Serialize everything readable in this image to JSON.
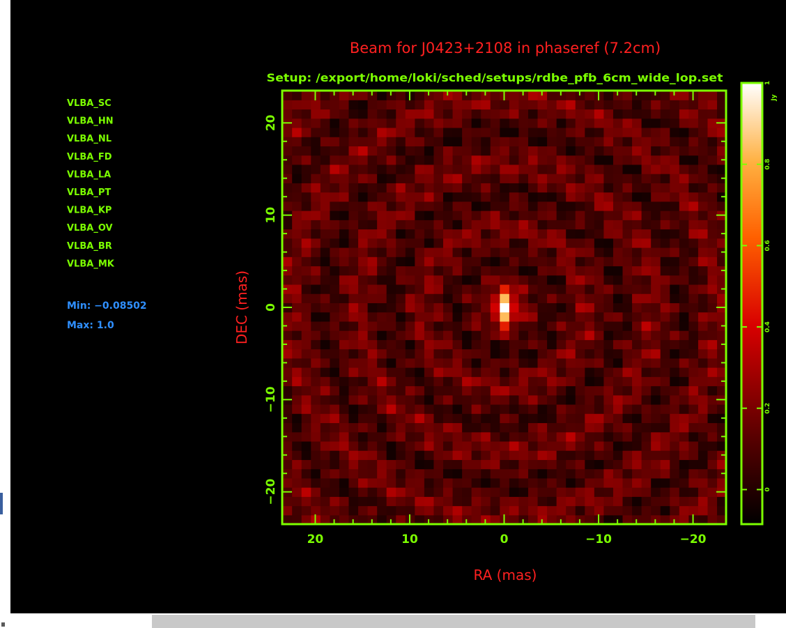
{
  "colors": {
    "background": "#000000",
    "axes": "#7cff00",
    "title": "#ff2020",
    "stats": "#2f8fff"
  },
  "chart_data": {
    "type": "heatmap",
    "title": "Beam for J0423+2108 in phaseref (7.2cm)",
    "subtitle": "Setup: /export/home/loki/sched/setups/rdbe_pfb_6cm_wide_lop.set",
    "xlabel": "RA (mas)",
    "ylabel": "DEC (mas)",
    "xlim": [
      23.5,
      -23.5
    ],
    "ylim": [
      -23.5,
      23.5
    ],
    "x_ticks": [
      "20",
      "10",
      "0",
      "−10",
      "−20"
    ],
    "y_ticks": [
      "20",
      "10",
      "0",
      "−10",
      "−20"
    ],
    "colorbar_ticks": [
      "1",
      "0.8",
      "0.6",
      "0.4",
      "0.2",
      "0"
    ],
    "colorbar_label": "Jy",
    "colorbar_range": [
      -0.08502,
      1.0
    ],
    "stations": [
      "VLBA_SC",
      "VLBA_HN",
      "VLBA_NL",
      "VLBA_FD",
      "VLBA_LA",
      "VLBA_PT",
      "VLBA_KP",
      "VLBA_OV",
      "VLBA_BR",
      "VLBA_MK"
    ],
    "stats": {
      "min_label": "Min: −0.08502",
      "max_label": "Max: 1.0"
    },
    "peak": {
      "x": 0,
      "y": 0,
      "value": 1.0
    },
    "grid": false,
    "legend": "none"
  }
}
